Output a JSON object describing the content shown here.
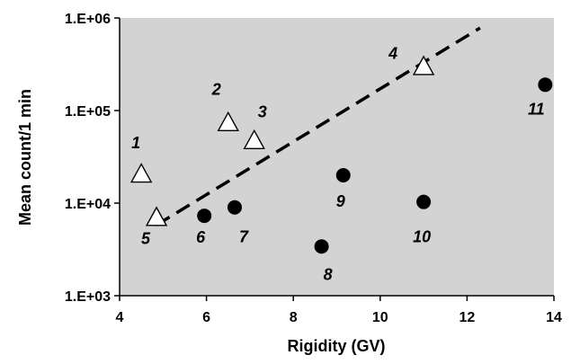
{
  "chart_data": {
    "type": "scatter",
    "title": "",
    "xlabel": "Rigidity (GV)",
    "ylabel": "Mean count/1 min",
    "xlim": [
      4,
      14
    ],
    "ylim": [
      1000,
      1000000
    ],
    "y_scale": "log",
    "grid": false,
    "background": "#d3d3d3",
    "x_ticks": [
      4,
      6,
      8,
      10,
      12,
      14
    ],
    "x_tick_labels": [
      "4",
      "6",
      "8",
      "10",
      "12",
      "14"
    ],
    "y_ticks": [
      1000,
      10000,
      100000,
      1000000
    ],
    "y_tick_labels": [
      "1.E+03",
      "1.E+04",
      "1.E+05",
      "1.E+06"
    ],
    "series": [
      {
        "marker": "triangle-open",
        "points": [
          {
            "label": "1",
            "x": 4.5,
            "y": 20000
          },
          {
            "label": "2",
            "x": 6.5,
            "y": 72000
          },
          {
            "label": "3",
            "x": 7.1,
            "y": 46000
          },
          {
            "label": "4",
            "x": 11.0,
            "y": 290000
          },
          {
            "label": "5",
            "x": 4.85,
            "y": 6800
          }
        ]
      },
      {
        "marker": "circle-filled",
        "points": [
          {
            "label": "6",
            "x": 5.95,
            "y": 7300
          },
          {
            "label": "7",
            "x": 6.65,
            "y": 9000
          },
          {
            "label": "8",
            "x": 8.65,
            "y": 3400
          },
          {
            "label": "9",
            "x": 9.15,
            "y": 20000
          },
          {
            "label": "10",
            "x": 11.0,
            "y": 10300
          },
          {
            "label": "11",
            "x": 13.8,
            "y": 190000
          }
        ]
      }
    ],
    "trendline": {
      "style": "dashed",
      "x": [
        4.85,
        12.3
      ],
      "y": [
        5800,
        780000
      ]
    }
  }
}
